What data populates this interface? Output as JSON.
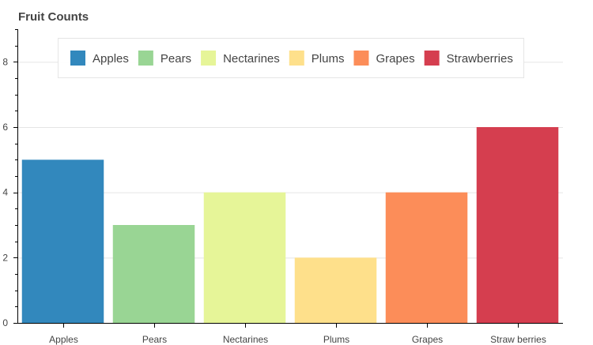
{
  "chart_data": {
    "type": "bar",
    "title": "Fruit Counts",
    "categories": [
      "Apples",
      "Pears",
      "Nectarines",
      "Plums",
      "Grapes",
      "Straw berries"
    ],
    "values": [
      5,
      3,
      4,
      2,
      4,
      6
    ],
    "colors": [
      "#3288bd",
      "#99d594",
      "#e6f598",
      "#fee08b",
      "#fc8d59",
      "#d53e4f"
    ],
    "ylim": [
      0,
      9
    ],
    "yticks": [
      0,
      2,
      4,
      6,
      8
    ],
    "grid": "horizontal",
    "legend": {
      "placement": "top-center",
      "items": [
        {
          "label": "Apples",
          "color": "#3288bd"
        },
        {
          "label": "Pears",
          "color": "#99d594"
        },
        {
          "label": "Nectarines",
          "color": "#e6f598"
        },
        {
          "label": "Plums",
          "color": "#fee08b"
        },
        {
          "label": "Grapes",
          "color": "#fc8d59"
        },
        {
          "label": "Strawberries",
          "color": "#d53e4f"
        }
      ]
    }
  }
}
